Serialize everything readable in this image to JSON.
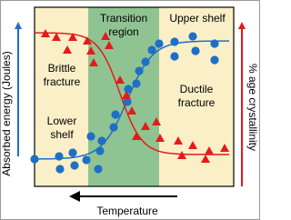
{
  "regions": {
    "transition": [
      "Transition",
      "region"
    ],
    "upper_shelf": "Upper shelf",
    "brittle": [
      "Brittle",
      "fracture"
    ],
    "lower_shelf": [
      "Lower",
      "shelf"
    ],
    "ductile": [
      "Ductile",
      "fracture"
    ]
  },
  "axes": {
    "left": "Absorbed energy (Joules)",
    "right": "% age crystallinity",
    "bottom": "Temperature"
  }
}
